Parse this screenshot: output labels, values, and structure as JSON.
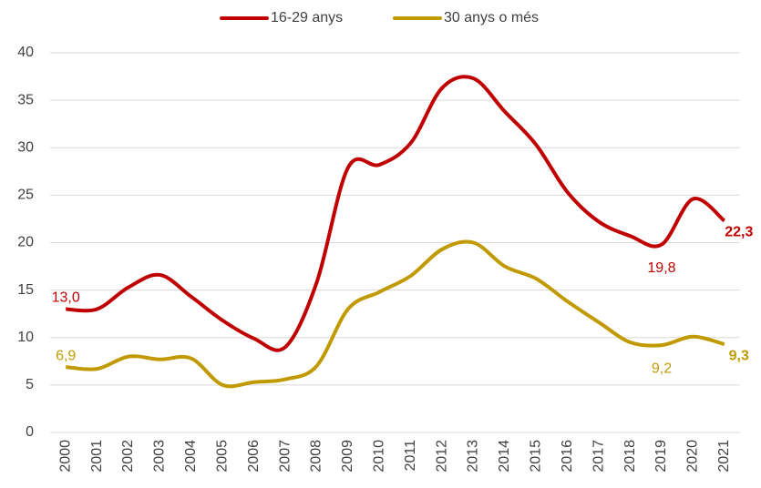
{
  "chart_data": {
    "type": "line",
    "categories": [
      "2000",
      "2001",
      "2002",
      "2003",
      "2004",
      "2005",
      "2006",
      "2007",
      "2008",
      "2009",
      "2010",
      "2011",
      "2012",
      "2013",
      "2014",
      "2015",
      "2016",
      "2017",
      "2018",
      "2019",
      "2020",
      "2021"
    ],
    "series": [
      {
        "name": "16-29 anys",
        "color": "#c00000",
        "values": [
          13.0,
          13.0,
          15.3,
          16.6,
          14.3,
          11.8,
          9.9,
          9.0,
          15.8,
          27.9,
          28.2,
          30.5,
          36.3,
          37.3,
          33.8,
          30.3,
          25.3,
          22.2,
          20.7,
          19.8,
          24.6,
          22.3
        ],
        "value_labels": [
          "13,0",
          null,
          null,
          null,
          null,
          null,
          null,
          null,
          null,
          null,
          null,
          null,
          null,
          null,
          null,
          null,
          null,
          null,
          null,
          "19,8",
          null,
          "22,3"
        ]
      },
      {
        "name": "30 anys o més",
        "color": "#c09a00",
        "values": [
          6.9,
          6.7,
          8.0,
          7.7,
          7.8,
          5.0,
          5.3,
          5.6,
          7.0,
          13.0,
          14.8,
          16.5,
          19.3,
          20.0,
          17.5,
          16.2,
          13.8,
          11.6,
          9.5,
          9.2,
          10.1,
          9.3
        ],
        "value_labels": [
          "6,9",
          null,
          null,
          null,
          null,
          null,
          null,
          null,
          null,
          null,
          null,
          null,
          null,
          null,
          null,
          null,
          null,
          null,
          null,
          "9,2",
          null,
          "9,3"
        ]
      }
    ],
    "ylim": [
      0,
      40
    ],
    "yticks": [
      0,
      5,
      10,
      15,
      20,
      25,
      30,
      35,
      40
    ],
    "grid": true,
    "legend": "top"
  }
}
